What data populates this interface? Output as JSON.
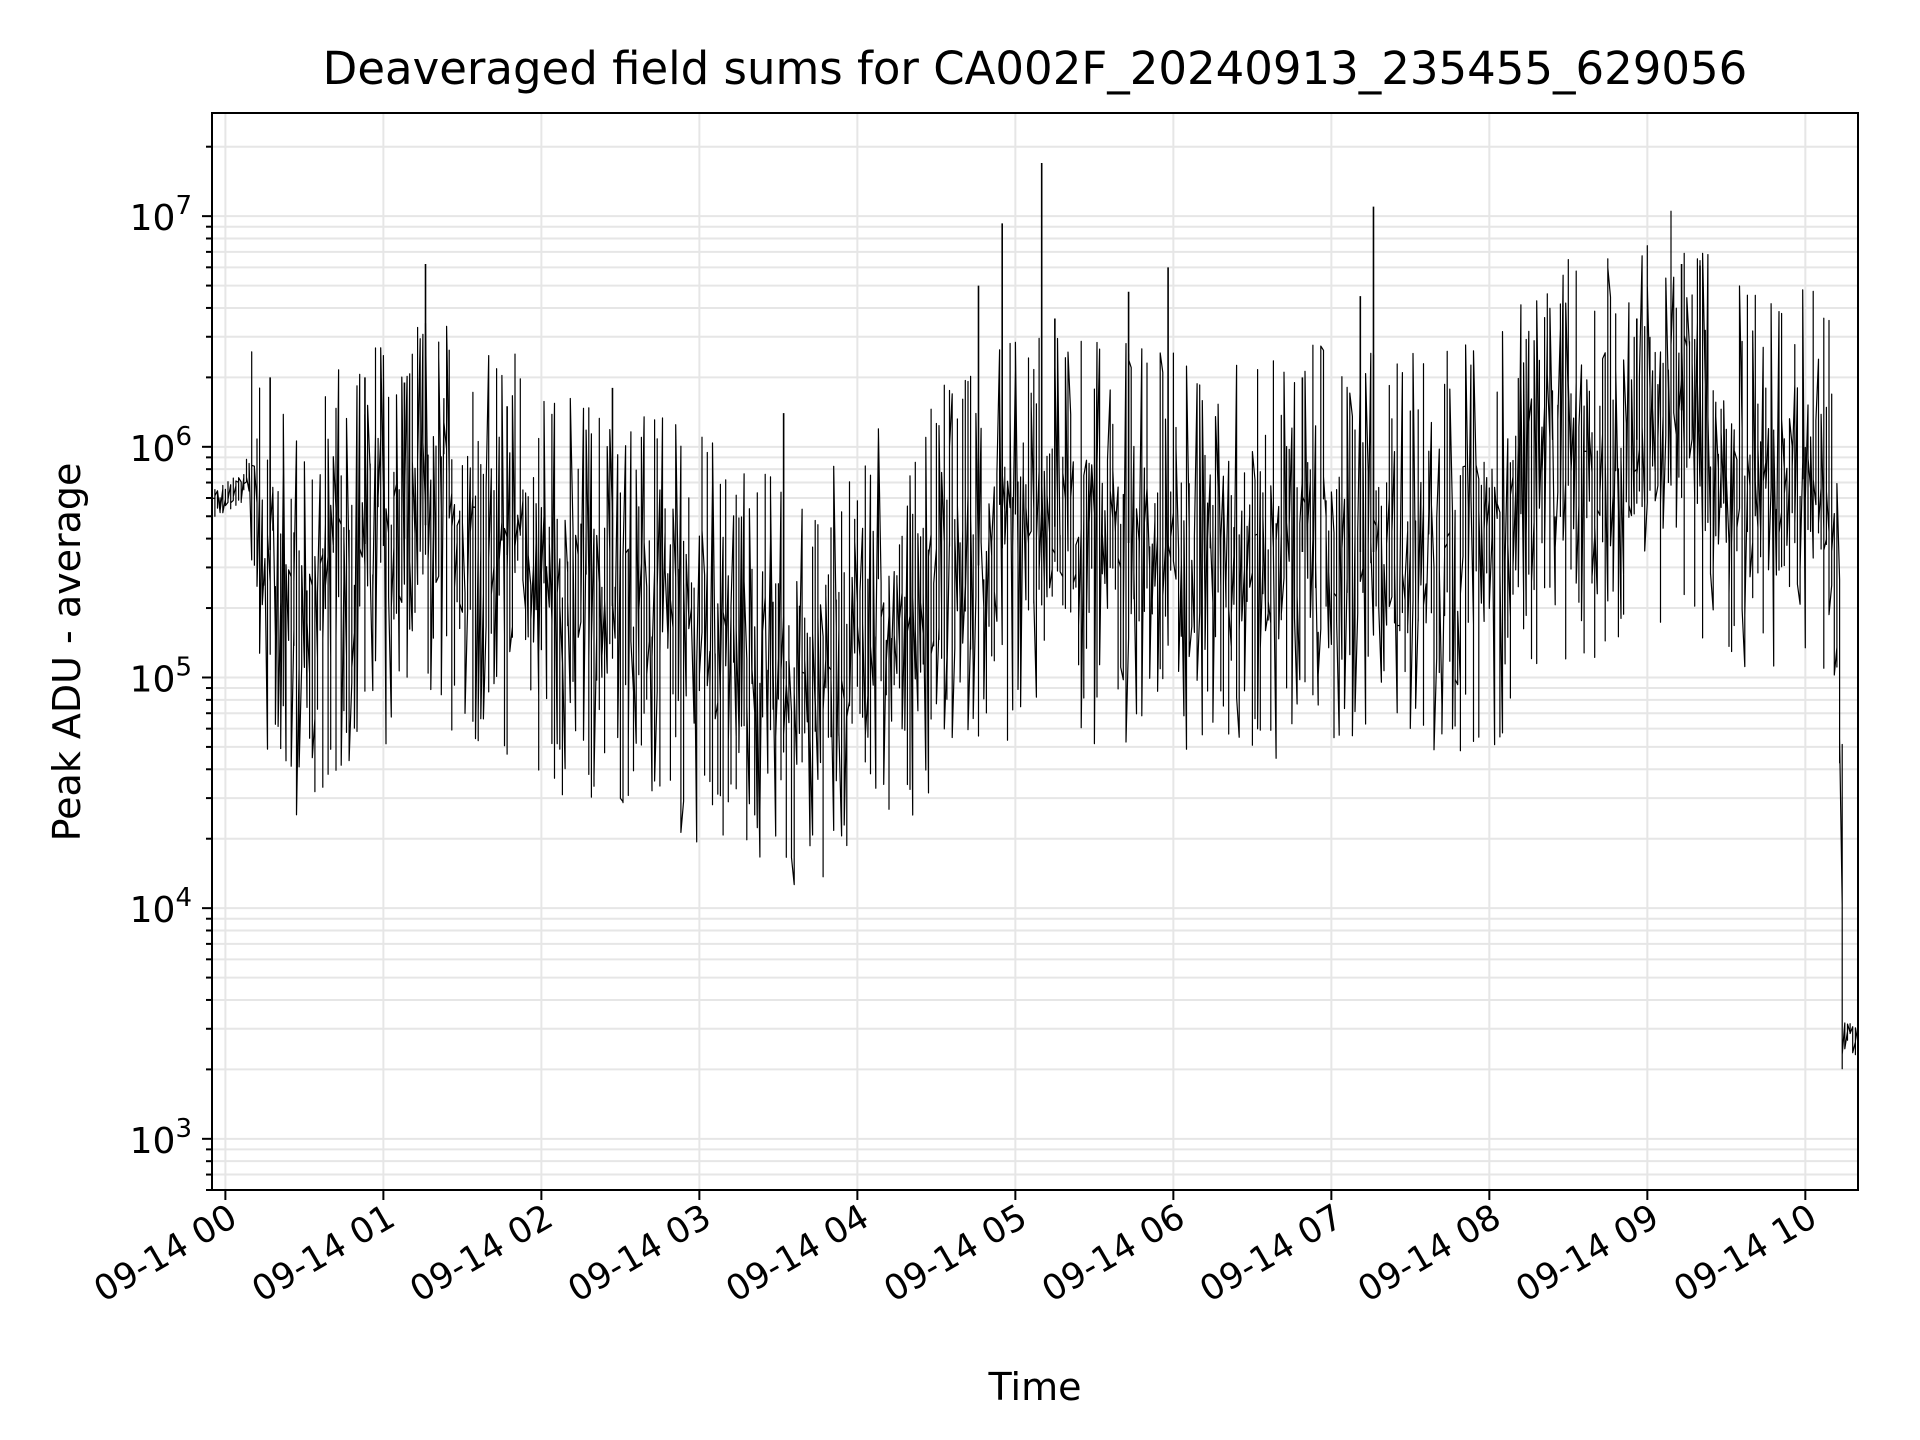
{
  "chart_data": {
    "type": "line",
    "title": "Deaveraged field sums for CA002F_20240913_235455_629056",
    "xlabel": "Time",
    "ylabel": "Peak ADU - average",
    "y_scale": "log",
    "ylim": [
      600,
      28000000
    ],
    "xlim": [
      "2024-09-13 23:54:55",
      "2024-09-14 10:20:00"
    ],
    "grid": true,
    "grid_color": "#e6e6e6",
    "line_color": "#000000",
    "x_ticks": [
      {
        "label": "09-14 00",
        "value": "2024-09-14 00:00"
      },
      {
        "label": "09-14 01",
        "value": "2024-09-14 01:00"
      },
      {
        "label": "09-14 02",
        "value": "2024-09-14 02:00"
      },
      {
        "label": "09-14 03",
        "value": "2024-09-14 03:00"
      },
      {
        "label": "09-14 04",
        "value": "2024-09-14 04:00"
      },
      {
        "label": "09-14 05",
        "value": "2024-09-14 05:00"
      },
      {
        "label": "09-14 06",
        "value": "2024-09-14 06:00"
      },
      {
        "label": "09-14 07",
        "value": "2024-09-14 07:00"
      },
      {
        "label": "09-14 08",
        "value": "2024-09-14 08:00"
      },
      {
        "label": "09-14 09",
        "value": "2024-09-14 09:00"
      },
      {
        "label": "09-14 10",
        "value": "2024-09-14 10:00"
      }
    ],
    "y_ticks": [
      {
        "value": 1000,
        "base": "10",
        "exp": "3"
      },
      {
        "value": 10000,
        "base": "10",
        "exp": "4"
      },
      {
        "value": 100000,
        "base": "10",
        "exp": "5"
      },
      {
        "value": 1000000,
        "base": "10",
        "exp": "6"
      },
      {
        "value": 10000000,
        "base": "10",
        "exp": "7"
      }
    ],
    "series": [
      {
        "points": [
          [
            "2024-09-13 23:55",
            550000
          ],
          [
            "2024-09-14 00:00",
            600000
          ],
          [
            "2024-09-14 00:05",
            620000
          ],
          [
            "2024-09-14 00:10",
            800000
          ],
          [
            "2024-09-14 00:15",
            400000
          ],
          [
            "2024-09-14 00:20",
            300000
          ],
          [
            "2024-09-14 00:25",
            200000
          ],
          [
            "2024-09-14 00:30",
            150000
          ],
          [
            "2024-09-14 00:35",
            200000
          ],
          [
            "2024-09-14 00:40",
            250000
          ],
          [
            "2024-09-14 00:45",
            300000
          ],
          [
            "2024-09-14 00:50",
            350000
          ],
          [
            "2024-09-14 00:55",
            400000
          ],
          [
            "2024-09-14 01:00",
            400000
          ],
          [
            "2024-09-14 01:10",
            400000
          ],
          [
            "2024-09-14 01:20",
            500000
          ],
          [
            "2024-09-14 01:30",
            450000
          ],
          [
            "2024-09-14 01:45",
            350000
          ],
          [
            "2024-09-14 02:00",
            280000
          ],
          [
            "2024-09-14 02:15",
            220000
          ],
          [
            "2024-09-14 02:30",
            200000
          ],
          [
            "2024-09-14 02:45",
            170000
          ],
          [
            "2024-09-14 03:00",
            150000
          ],
          [
            "2024-09-14 03:15",
            130000
          ],
          [
            "2024-09-14 03:30",
            100000
          ],
          [
            "2024-09-14 03:45",
            90000
          ],
          [
            "2024-09-14 04:00",
            150000
          ],
          [
            "2024-09-14 04:15",
            180000
          ],
          [
            "2024-09-14 04:30",
            230000
          ],
          [
            "2024-09-14 04:45",
            300000
          ],
          [
            "2024-09-14 05:00",
            400000
          ],
          [
            "2024-09-14 05:15",
            450000
          ],
          [
            "2024-09-14 05:30",
            400000
          ],
          [
            "2024-09-14 05:45",
            380000
          ],
          [
            "2024-09-14 06:00",
            350000
          ],
          [
            "2024-09-14 06:30",
            350000
          ],
          [
            "2024-09-14 07:00",
            350000
          ],
          [
            "2024-09-14 07:30",
            350000
          ],
          [
            "2024-09-14 08:00",
            380000
          ],
          [
            "2024-09-14 08:10",
            500000
          ],
          [
            "2024-09-14 08:20",
            700000
          ],
          [
            "2024-09-14 08:30",
            900000
          ],
          [
            "2024-09-14 08:45",
            1000000
          ],
          [
            "2024-09-14 09:00",
            1100000
          ],
          [
            "2024-09-14 09:15",
            1500000
          ],
          [
            "2024-09-14 09:30",
            700000
          ],
          [
            "2024-09-14 09:45",
            600000
          ],
          [
            "2024-09-14 10:00",
            650000
          ],
          [
            "2024-09-14 10:10",
            800000
          ],
          [
            "2024-09-14 10:14",
            50000
          ],
          [
            "2024-09-14 10:15",
            3000
          ],
          [
            "2024-09-14 10:20",
            2600
          ]
        ],
        "spikes": [
          [
            "2024-09-14 00:17",
            2000000
          ],
          [
            "2024-09-14 00:53",
            2000000
          ],
          [
            "2024-09-14 01:08",
            1900000
          ],
          [
            "2024-09-14 01:16",
            6200000
          ],
          [
            "2024-09-14 01:47",
            1500000
          ],
          [
            "2024-09-14 02:27",
            1800000
          ],
          [
            "2024-09-14 03:32",
            1400000
          ],
          [
            "2024-09-14 04:46",
            5000000
          ],
          [
            "2024-09-14 04:55",
            9300000
          ],
          [
            "2024-09-14 05:10",
            17000000
          ],
          [
            "2024-09-14 05:15",
            3600000
          ],
          [
            "2024-09-14 05:43",
            4700000
          ],
          [
            "2024-09-14 05:58",
            6000000
          ],
          [
            "2024-09-14 06:49",
            2000000
          ],
          [
            "2024-09-14 07:11",
            4500000
          ],
          [
            "2024-09-14 07:16",
            11000000
          ],
          [
            "2024-09-14 08:56",
            3600000
          ],
          [
            "2024-09-14 09:13",
            6200000
          ],
          [
            "2024-09-14 09:20",
            6100000
          ]
        ]
      }
    ]
  }
}
